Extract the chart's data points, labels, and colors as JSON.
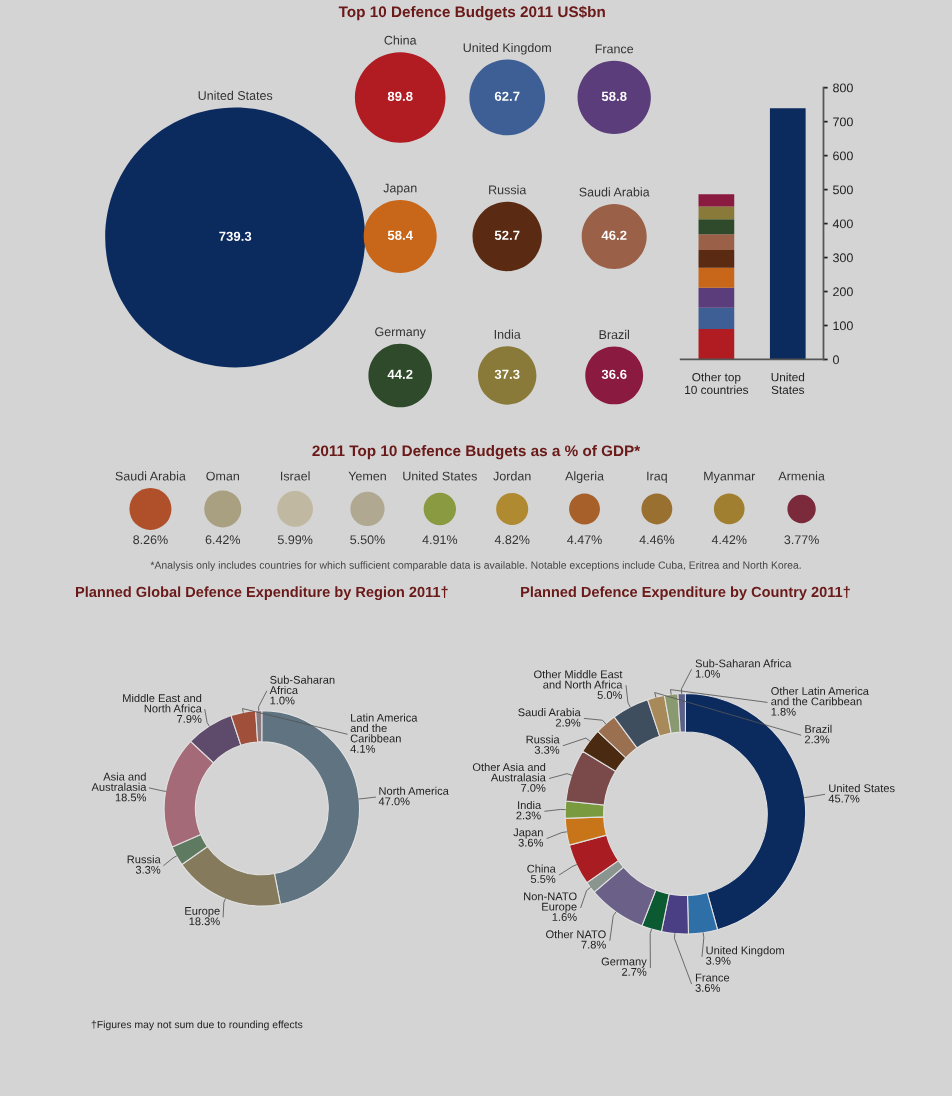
{
  "chart_data": [
    {
      "type": "other",
      "title": "Top 10 Defence Budgets 2011 US$bn",
      "categories": [
        "United States",
        "China",
        "United Kingdom",
        "France",
        "Japan",
        "Russia",
        "Saudi Arabia",
        "Germany",
        "India",
        "Brazil"
      ],
      "values": [
        739.3,
        89.8,
        62.7,
        58.8,
        58.4,
        52.7,
        46.2,
        44.2,
        37.3,
        36.6
      ],
      "colors": [
        "#0b2a5e",
        "#b01c22",
        "#3d5f96",
        "#5a3d7a",
        "#c8661a",
        "#5a2a12",
        "#9a6048",
        "#2e4a2a",
        "#8a7a3a",
        "#8a1a40"
      ],
      "data_labels": true
    },
    {
      "type": "bar",
      "stacked": true,
      "categories": [
        "Other top\n10 countries",
        "United\nStates"
      ],
      "series": [
        {
          "color": "#b01c22",
          "values": [
            89.8,
            null
          ]
        },
        {
          "color": "#3d5f96",
          "values": [
            62.7,
            null
          ]
        },
        {
          "color": "#5a3d7a",
          "values": [
            58.8,
            null
          ]
        },
        {
          "color": "#c8661a",
          "values": [
            58.4,
            null
          ]
        },
        {
          "color": "#5a2a12",
          "values": [
            52.7,
            null
          ]
        },
        {
          "color": "#9a6048",
          "values": [
            46.2,
            null
          ]
        },
        {
          "color": "#2e4a2a",
          "values": [
            44.2,
            null
          ]
        },
        {
          "color": "#8a7a3a",
          "values": [
            37.3,
            null
          ]
        },
        {
          "color": "#8a1a40",
          "values": [
            36.6,
            null
          ]
        },
        {
          "color": "#0b2a5e",
          "values": [
            null,
            739.3
          ]
        }
      ],
      "ylim": [
        0,
        800
      ],
      "yticks": [
        0,
        100,
        200,
        300,
        400,
        500,
        600,
        700,
        800
      ],
      "grid": false
    },
    {
      "type": "other",
      "title": "2011 Top 10 Defence Budgets as a % of GDP*",
      "categories": [
        "Saudi Arabia",
        "Oman",
        "Israel",
        "Yemen",
        "United States",
        "Jordan",
        "Algeria",
        "Iraq",
        "Myanmar",
        "Armenia"
      ],
      "values": [
        8.26,
        6.42,
        5.99,
        5.5,
        4.91,
        4.82,
        4.47,
        4.46,
        4.42,
        3.77
      ],
      "value_labels": [
        "8.26%",
        "6.42%",
        "5.99%",
        "5.50%",
        "4.91%",
        "4.82%",
        "4.47%",
        "4.46%",
        "4.42%",
        "3.77%"
      ],
      "colors": [
        "#b0502a",
        "#a8a080",
        "#c0b8a0",
        "#b0a890",
        "#8a9a40",
        "#b08a30",
        "#a8602a",
        "#9a7030",
        "#a08030",
        "#7a2a3a"
      ],
      "annotations": [
        "*Analysis only includes countries for which sufficient comparable data is available. Notable exceptions include Cuba, Eritrea and North Korea."
      ]
    },
    {
      "type": "donut",
      "title": "Planned Global Defence Expenditure by Region 2011†",
      "categories": [
        "North America",
        "Europe",
        "Russia",
        "Asia and\nAustralasia",
        "Middle East and\nNorth Africa",
        "Latin America\nand the\nCaribbean",
        "Sub-Saharan\nAfrica"
      ],
      "values": [
        47.0,
        18.3,
        3.3,
        18.5,
        7.9,
        4.1,
        1.0
      ],
      "value_labels": [
        "47.0%",
        "18.3%",
        "3.3%",
        "18.5%",
        "7.9%",
        "4.1%",
        "1.0%"
      ],
      "colors": [
        "#5f7380",
        "#857a5c",
        "#5e7a60",
        "#a46a78",
        "#5e4a6a",
        "#a0503a",
        "#8a7a80"
      ],
      "annotations": [
        "†Figures may not sum due to rounding effects"
      ]
    },
    {
      "type": "donut",
      "title": "Planned Defence Expenditure by Country 2011†",
      "categories": [
        "United States",
        "United Kingdom",
        "France",
        "Germany",
        "Other NATO",
        "Non-NATO\nEurope",
        "China",
        "Japan",
        "India",
        "Other Asia and\nAustralasia",
        "Russia",
        "Saudi Arabia",
        "Other Middle East\nand North Africa",
        "Brazil",
        "Other Latin America\nand the Caribbean",
        "Sub-Saharan Africa"
      ],
      "values": [
        45.7,
        3.9,
        3.6,
        2.7,
        7.8,
        1.6,
        5.5,
        3.6,
        2.3,
        7.0,
        3.3,
        2.9,
        5.0,
        2.3,
        1.8,
        1.0
      ],
      "value_labels": [
        "45.7%",
        "3.9%",
        "3.6%",
        "2.7%",
        "7.8%",
        "1.6%",
        "5.5%",
        "3.6%",
        "2.3%",
        "7.0%",
        "3.3%",
        "2.9%",
        "5.0%",
        "2.3%",
        "1.8%",
        "1.0%"
      ],
      "colors": [
        "#0b2a5e",
        "#2e6fa8",
        "#4a3f84",
        "#0b5a32",
        "#6a6088",
        "#8a9590",
        "#a81c22",
        "#c8751a",
        "#7a9a40",
        "#7a4a4a",
        "#4a2a10",
        "#9a7050",
        "#3e4e5e",
        "#a88a5a",
        "#8a9a70",
        "#5a6088"
      ]
    }
  ]
}
